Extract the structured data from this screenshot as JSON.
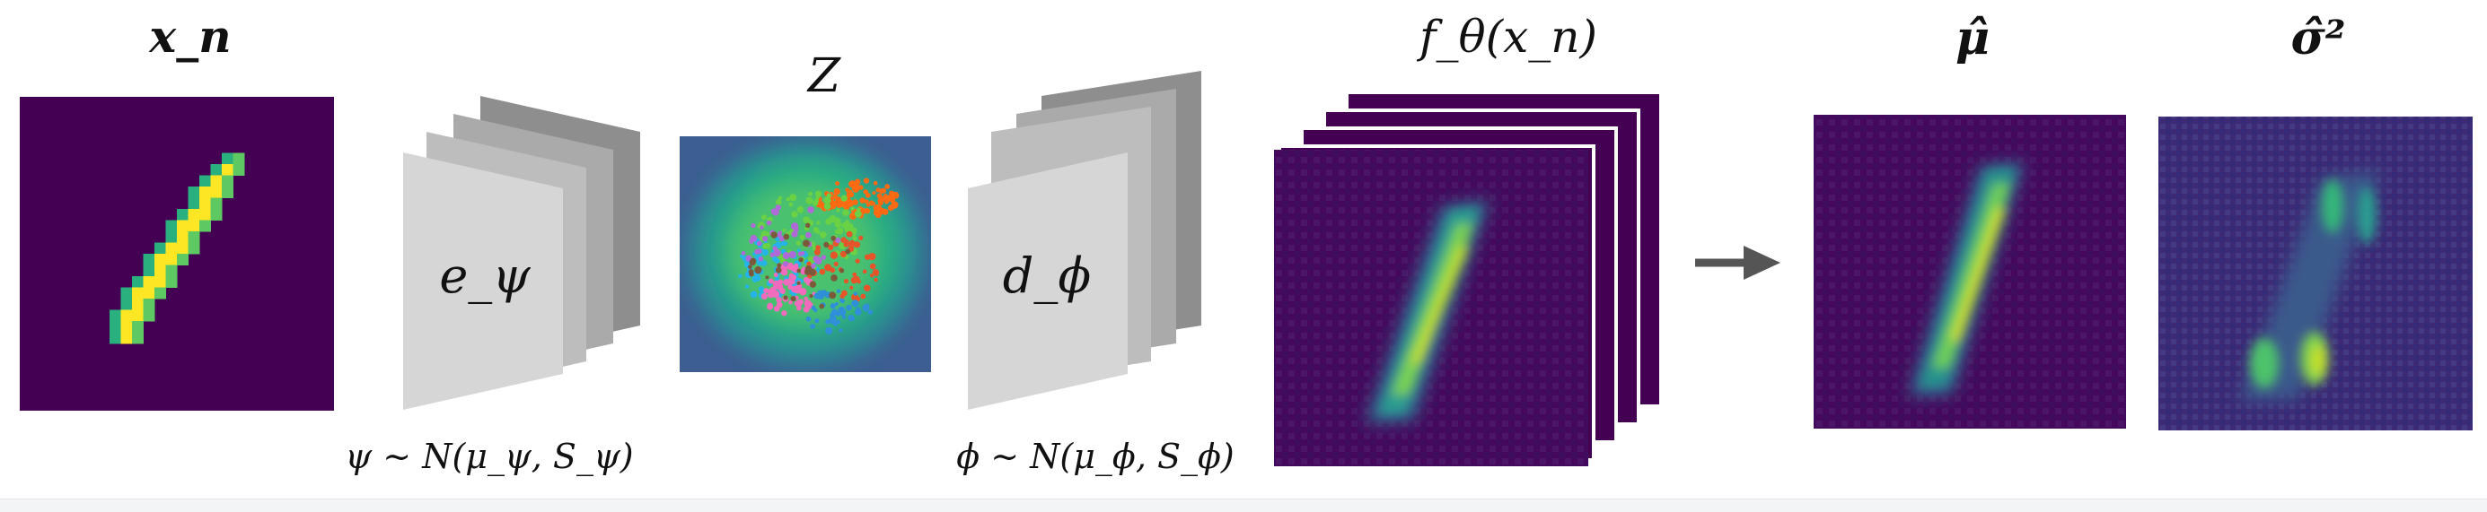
{
  "labels": {
    "input": "x_n",
    "latent": "Z",
    "output": "f_θ(x_n)",
    "mean": "μ̂",
    "variance": "σ̂²",
    "encoder": "e_ψ",
    "decoder": "d_ϕ",
    "encoder_prior": "ψ ∼ N(μ_ψ, S_ψ)",
    "decoder_prior": "ϕ ∼ N(μ_ϕ, S_ϕ)"
  },
  "colors": {
    "viridis_dark": "#440154",
    "viridis_blue": "#3b528b",
    "viridis_teal": "#21918c",
    "viridis_green": "#5ec962",
    "viridis_yellow": "#fde725",
    "layer_front": "#d6d6d6",
    "layer_mid": "#b4b4b4",
    "layer_back": "#8e8e8e",
    "arrow": "#555555"
  },
  "icons": {
    "flow": "right-arrow-icon"
  }
}
